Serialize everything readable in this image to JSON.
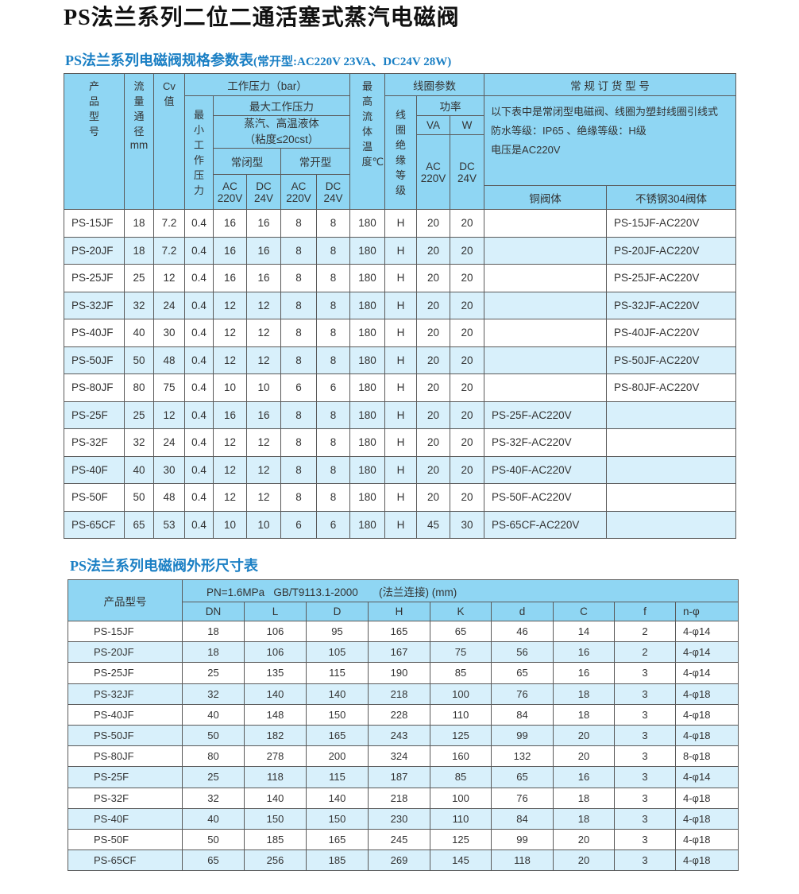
{
  "title": "PS法兰系列二位二通活塞式蒸汽电磁阀",
  "spec_table": {
    "title": "PS法兰系列电磁阀规格参数表",
    "title_note": "(常开型:AC220V 23VA、DC24V 28W)",
    "headers": {
      "model": "产品型号",
      "dn": "流量通径",
      "dn_unit": "mm",
      "cv": "Cv值",
      "pressure": "工作压力（bar）",
      "min": "最小工作压力",
      "max": "最大工作压力",
      "medium": "蒸汽、高温液体",
      "viscosity": "（粘度≤20cst）",
      "nc": "常闭型",
      "no": "常开型",
      "ac": "AC",
      "ac_v": "220V",
      "dc": "DC",
      "dc_v": "24V",
      "temp": "最高流体温度℃",
      "coil": "线圈参数",
      "insul": "线圈绝缘等级",
      "power": "功率",
      "va": "VA",
      "w": "W",
      "order": "常 规 订 货 型 号",
      "note1": "以下表中是常闭型电磁阀、线圈为塑封线圈引线式",
      "note2": "防水等级：IP65 、绝缘等级：H级",
      "note3": "电压是AC220V",
      "copper": "铜阀体",
      "ss": "不锈钢304阀体"
    },
    "rows": [
      [
        "PS-15JF",
        "18",
        "7.2",
        "0.4",
        "16",
        "16",
        "8",
        "8",
        "180",
        "H",
        "20",
        "20",
        "",
        "PS-15JF-AC220V"
      ],
      [
        "PS-20JF",
        "18",
        "7.2",
        "0.4",
        "16",
        "16",
        "8",
        "8",
        "180",
        "H",
        "20",
        "20",
        "",
        "PS-20JF-AC220V"
      ],
      [
        "PS-25JF",
        "25",
        "12",
        "0.4",
        "16",
        "16",
        "8",
        "8",
        "180",
        "H",
        "20",
        "20",
        "",
        "PS-25JF-AC220V"
      ],
      [
        "PS-32JF",
        "32",
        "24",
        "0.4",
        "12",
        "12",
        "8",
        "8",
        "180",
        "H",
        "20",
        "20",
        "",
        "PS-32JF-AC220V"
      ],
      [
        "PS-40JF",
        "40",
        "30",
        "0.4",
        "12",
        "12",
        "8",
        "8",
        "180",
        "H",
        "20",
        "20",
        "",
        "PS-40JF-AC220V"
      ],
      [
        "PS-50JF",
        "50",
        "48",
        "0.4",
        "12",
        "12",
        "8",
        "8",
        "180",
        "H",
        "20",
        "20",
        "",
        "PS-50JF-AC220V"
      ],
      [
        "PS-80JF",
        "80",
        "75",
        "0.4",
        "10",
        "10",
        "6",
        "6",
        "180",
        "H",
        "20",
        "20",
        "",
        "PS-80JF-AC220V"
      ],
      [
        "PS-25F",
        "25",
        "12",
        "0.4",
        "16",
        "16",
        "8",
        "8",
        "180",
        "H",
        "20",
        "20",
        "PS-25F-AC220V",
        ""
      ],
      [
        "PS-32F",
        "32",
        "24",
        "0.4",
        "12",
        "12",
        "8",
        "8",
        "180",
        "H",
        "20",
        "20",
        "PS-32F-AC220V",
        ""
      ],
      [
        "PS-40F",
        "40",
        "30",
        "0.4",
        "12",
        "12",
        "8",
        "8",
        "180",
        "H",
        "20",
        "20",
        "PS-40F-AC220V",
        ""
      ],
      [
        "PS-50F",
        "50",
        "48",
        "0.4",
        "12",
        "12",
        "8",
        "8",
        "180",
        "H",
        "20",
        "20",
        "PS-50F-AC220V",
        ""
      ],
      [
        "PS-65CF",
        "65",
        "53",
        "0.4",
        "10",
        "10",
        "6",
        "6",
        "180",
        "H",
        "45",
        "30",
        "PS-65CF-AC220V",
        ""
      ]
    ]
  },
  "dim_table": {
    "title": "PS法兰系列电磁阀外形尺寸表",
    "model_header": "产品型号",
    "spec": "PN=1.6MPa   GB/T9113.1-2000       (法兰连接) (mm)",
    "columns": [
      "DN",
      "L",
      "D",
      "H",
      "K",
      "d",
      "C",
      "f",
      "n-φ"
    ],
    "rows": [
      [
        "PS-15JF",
        "18",
        "106",
        "95",
        "165",
        "65",
        "46",
        "14",
        "2",
        "4-φ14"
      ],
      [
        "PS-20JF",
        "18",
        "106",
        "105",
        "167",
        "75",
        "56",
        "16",
        "2",
        "4-φ14"
      ],
      [
        "PS-25JF",
        "25",
        "135",
        "115",
        "190",
        "85",
        "65",
        "16",
        "3",
        "4-φ14"
      ],
      [
        "PS-32JF",
        "32",
        "140",
        "140",
        "218",
        "100",
        "76",
        "18",
        "3",
        "4-φ18"
      ],
      [
        "PS-40JF",
        "40",
        "148",
        "150",
        "228",
        "110",
        "84",
        "18",
        "3",
        "4-φ18"
      ],
      [
        "PS-50JF",
        "50",
        "182",
        "165",
        "243",
        "125",
        "99",
        "20",
        "3",
        "4-φ18"
      ],
      [
        "PS-80JF",
        "80",
        "278",
        "200",
        "324",
        "160",
        "132",
        "20",
        "3",
        "8-φ18"
      ],
      [
        "PS-25F",
        "25",
        "118",
        "115",
        "187",
        "85",
        "65",
        "16",
        "3",
        "4-φ14"
      ],
      [
        "PS-32F",
        "32",
        "140",
        "140",
        "218",
        "100",
        "76",
        "18",
        "3",
        "4-φ18"
      ],
      [
        "PS-40F",
        "40",
        "150",
        "150",
        "230",
        "110",
        "84",
        "18",
        "3",
        "4-φ18"
      ],
      [
        "PS-50F",
        "50",
        "185",
        "165",
        "245",
        "125",
        "99",
        "20",
        "3",
        "4-φ18"
      ],
      [
        "PS-65CF",
        "65",
        "256",
        "185",
        "269",
        "145",
        "118",
        "20",
        "3",
        "4-φ18"
      ]
    ]
  },
  "colors": {
    "header": "#8fd6f3",
    "alt_row": "#d8f0fb",
    "subtitle": "#1a7fc4"
  }
}
